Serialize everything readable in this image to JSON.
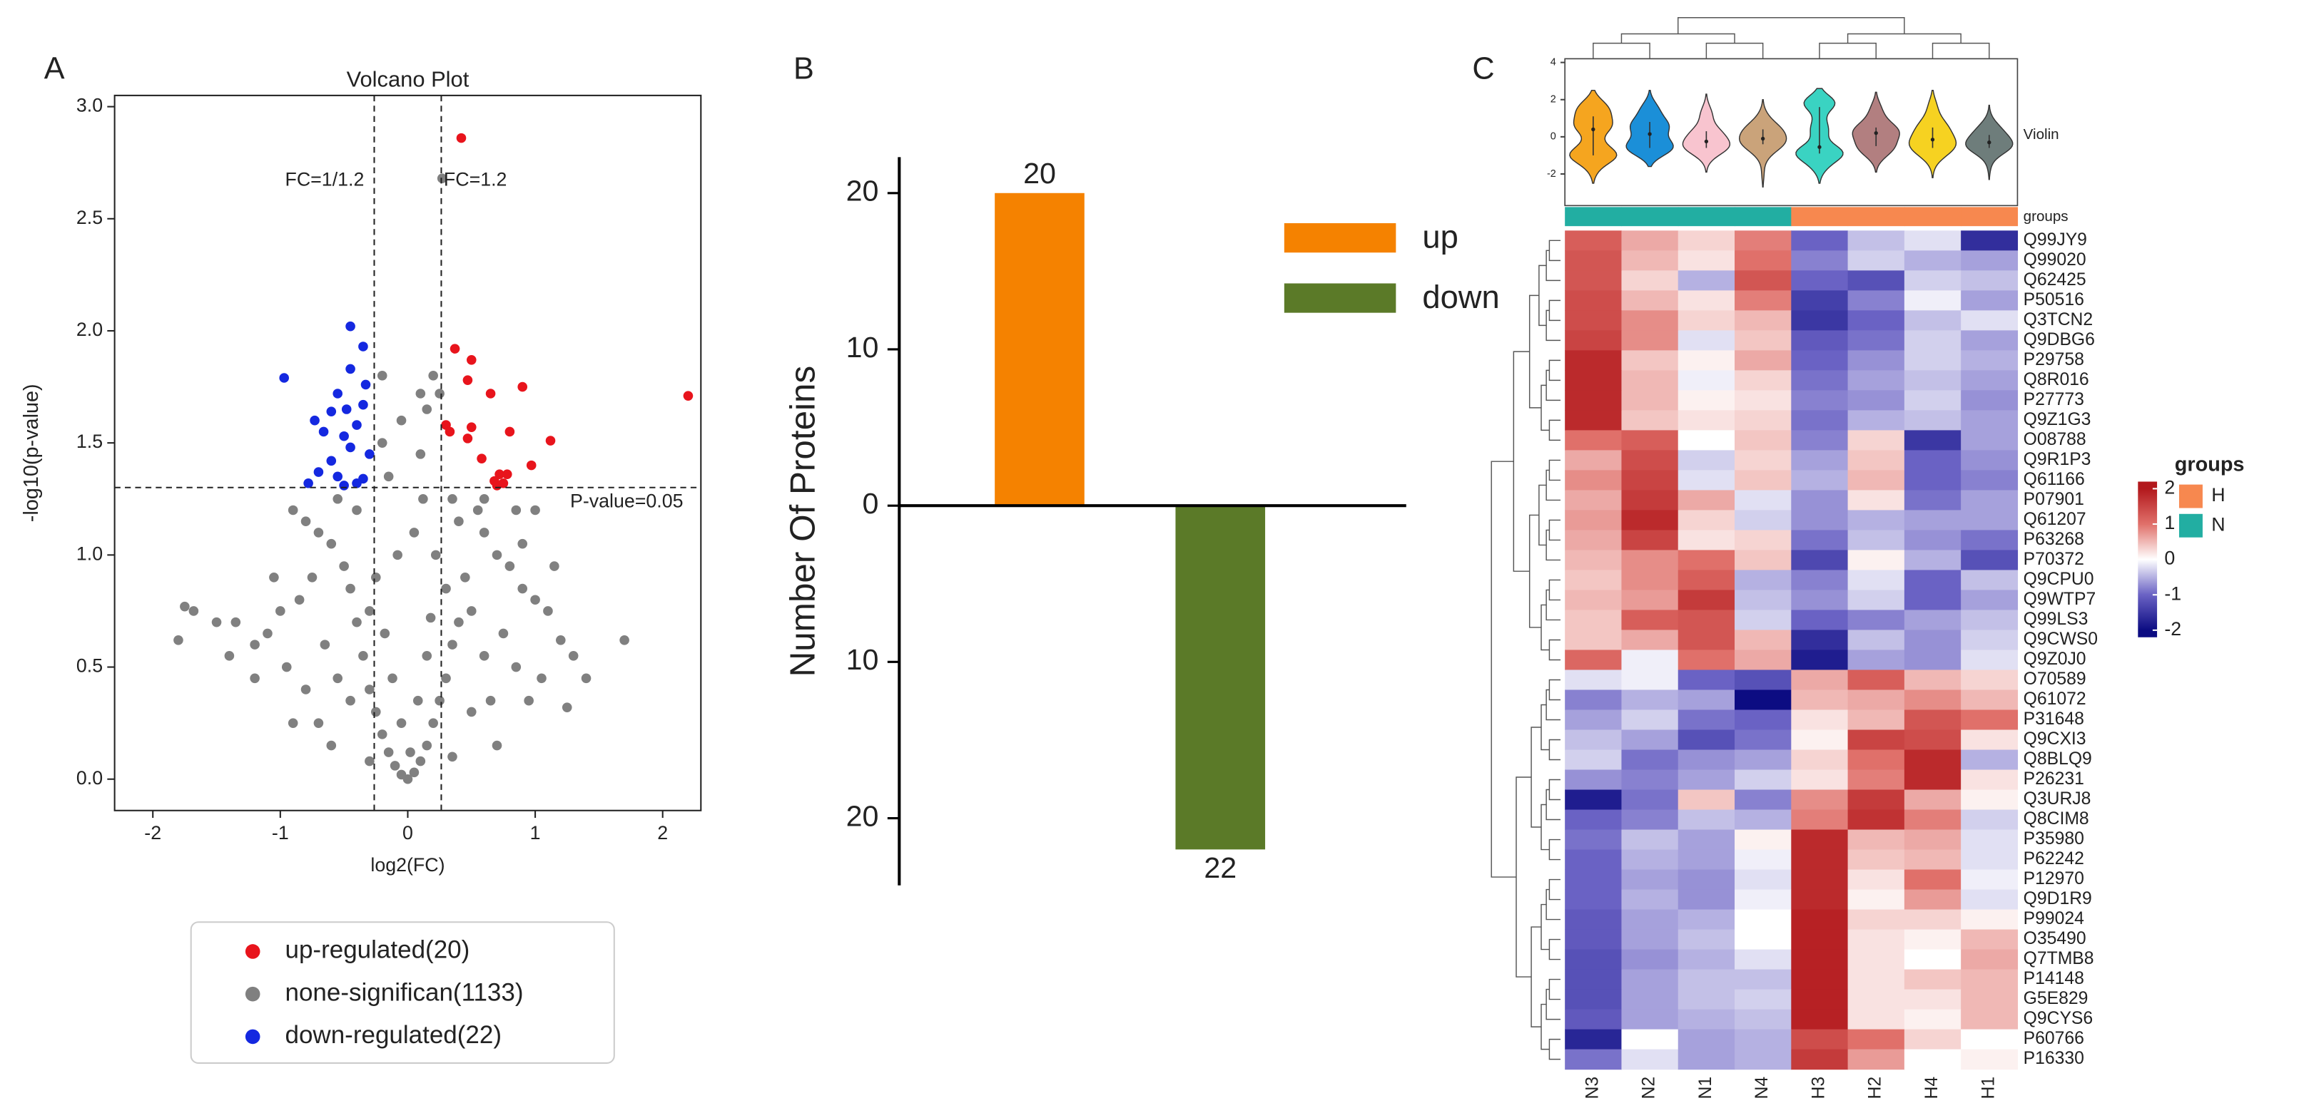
{
  "chart_data": [
    {
      "type": "scatter",
      "panel": "A",
      "title": "Volcano Plot",
      "xlabel": "log2(FC)",
      "ylabel": "-log10(p-value)",
      "xlim": [
        -2.3,
        2.3
      ],
      "ylim": [
        -0.14,
        3.05
      ],
      "xticks": [
        -2,
        -1,
        0,
        1,
        2
      ],
      "yticks": [
        {
          "value": 0,
          "label": "0.0"
        },
        0.5,
        {
          "value": 1,
          "label": "1.0"
        },
        1.5,
        {
          "value": 2,
          "label": "2.0"
        },
        2.5,
        {
          "value": 3,
          "label": "3.0"
        }
      ],
      "vlines": [
        -0.263,
        0.263
      ],
      "hline": 1.301,
      "annotations": [
        "FC=1/1.2",
        "FC=1.2",
        "P-value=0.05"
      ],
      "series": [
        {
          "name": "up-regulated(20)",
          "color": "#e8141c",
          "x": [
            0.42,
            0.37,
            0.5,
            0.47,
            0.65,
            0.9,
            2.2,
            0.3,
            0.33,
            0.5,
            0.47,
            0.8,
            1.12,
            0.58,
            0.97,
            0.72,
            0.68,
            0.75,
            0.7,
            0.78
          ],
          "values": [
            2.86,
            1.92,
            1.87,
            1.78,
            1.72,
            1.75,
            1.71,
            1.58,
            1.55,
            1.57,
            1.52,
            1.55,
            1.51,
            1.43,
            1.4,
            1.36,
            1.33,
            1.32,
            1.31,
            1.36
          ]
        },
        {
          "name": "none-significan(1133)",
          "color": "#808080",
          "x": [
            0.27,
            0.2,
            0.15,
            0.25,
            -0.05,
            0.1,
            -0.2,
            -0.15,
            0.35,
            0.4,
            0.55,
            0.6,
            0.7,
            0.8,
            0.9,
            1.0,
            1.1,
            1.2,
            1.3,
            1.7,
            0.45,
            0.5,
            0.35,
            0.3,
            0.25,
            0.2,
            0.15,
            0.1,
            0.05,
            0,
            -0.05,
            -0.1,
            -0.15,
            -0.2,
            -0.25,
            -0.3,
            -0.35,
            -0.4,
            -0.45,
            -0.5,
            -0.6,
            -0.7,
            -0.8,
            -0.9,
            -0.55,
            -0.4,
            -0.75,
            -0.85,
            -1.0,
            -1.1,
            -1.2,
            -1.4,
            -1.35,
            -1.75,
            -1.68,
            -1.8,
            -1.5,
            -0.65,
            -0.55,
            -0.45,
            -0.95,
            -0.8,
            -0.7,
            0.6,
            0.75,
            0.85,
            0.65,
            0.5,
            1.05,
            0.95,
            1.4,
            0.12,
            0.05,
            -0.08,
            0.22,
            -0.25,
            0.3,
            -0.3,
            0.4,
            0.15,
            -0.12,
            0.08,
            -0.05,
            0.02,
            0.18,
            -0.18,
            1.25,
            -0.9,
            0.7,
            -0.6,
            0.35,
            -0.3,
            0.9,
            1.0,
            0.6,
            -1.05,
            -1.2,
            1.15,
            0.85,
            -0.2,
            0.1
          ],
          "values": [
            2.68,
            1.8,
            1.65,
            1.72,
            1.6,
            1.45,
            1.5,
            1.35,
            1.25,
            1.15,
            1.2,
            1.1,
            1.0,
            0.95,
            0.85,
            0.8,
            0.75,
            0.62,
            0.55,
            0.62,
            0.9,
            0.75,
            0.6,
            0.45,
            0.35,
            0.25,
            0.15,
            0.08,
            0.03,
            0,
            0.02,
            0.06,
            0.12,
            0.2,
            0.3,
            0.4,
            0.55,
            0.7,
            0.85,
            0.95,
            1.05,
            1.1,
            1.15,
            1.2,
            1.25,
            1.2,
            0.9,
            0.8,
            0.75,
            0.65,
            0.6,
            0.55,
            0.7,
            0.77,
            0.75,
            0.62,
            0.7,
            0.6,
            0.45,
            0.35,
            0.5,
            0.4,
            0.25,
            0.55,
            0.65,
            0.5,
            0.35,
            0.3,
            0.45,
            0.35,
            0.45,
            1.25,
            1.1,
            1.0,
            1.0,
            0.9,
            0.85,
            0.75,
            0.7,
            0.55,
            0.45,
            0.35,
            0.25,
            0.12,
            0.72,
            0.65,
            0.32,
            0.25,
            0.15,
            0.15,
            0.1,
            0.08,
            1.05,
            1.2,
            1.25,
            0.9,
            0.45,
            0.95,
            1.2,
            1.8,
            1.72
          ]
        },
        {
          "name": "down-regulated(22)",
          "color": "#1428e0",
          "x": [
            -0.45,
            -0.35,
            -0.45,
            -0.97,
            -0.33,
            -0.55,
            -0.35,
            -0.6,
            -0.48,
            -0.73,
            -0.4,
            -0.66,
            -0.5,
            -0.45,
            -0.3,
            -0.6,
            -0.7,
            -0.55,
            -0.35,
            -0.4,
            -0.78,
            -0.5
          ],
          "values": [
            2.02,
            1.93,
            1.83,
            1.79,
            1.76,
            1.72,
            1.67,
            1.64,
            1.65,
            1.6,
            1.58,
            1.55,
            1.53,
            1.48,
            1.45,
            1.42,
            1.37,
            1.35,
            1.34,
            1.32,
            1.32,
            1.31
          ]
        }
      ]
    },
    {
      "type": "bar",
      "panel": "B",
      "ylabel": "Number Of Proteins",
      "ylim": [
        -24.3,
        22.3
      ],
      "yticks": [
        20,
        10,
        0,
        {
          "value": -10,
          "label": "10"
        },
        {
          "value": -20,
          "label": "20"
        }
      ],
      "series": [
        {
          "name": "up",
          "color": "#f58200",
          "values": [
            20
          ],
          "value_labels": [
            "20"
          ]
        },
        {
          "name": "down",
          "color": "#5b7a28",
          "values": [
            -22
          ],
          "value_labels": [
            "22"
          ]
        }
      ]
    },
    {
      "type": "heatmap",
      "panel": "C",
      "columns": [
        "N3",
        "N2",
        "N1",
        "N4",
        "H3",
        "H2",
        "H4",
        "H1"
      ],
      "rows": [
        "Q99JY9",
        "Q99020",
        "Q62425",
        "P50516",
        "Q3TCN2",
        "Q9DBG6",
        "P29758",
        "Q8R016",
        "P27773",
        "Q9Z1G3",
        "O08788",
        "Q9R1P3",
        "Q61166",
        "P07901",
        "Q61207",
        "P63268",
        "P70372",
        "Q9CPU0",
        "Q9WTP7",
        "Q99LS3",
        "Q9CWS0",
        "Q9Z0J0",
        "O70589",
        "Q61072",
        "P31648",
        "Q9CXI3",
        "Q8BLQ9",
        "P26231",
        "Q3URJ8",
        "Q8CIM8",
        "P35980",
        "P62242",
        "P12970",
        "Q9D1R9",
        "P99024",
        "O35490",
        "Q7TMB8",
        "P14148",
        "G5E829",
        "Q9CYS6",
        "P60766",
        "P16330"
      ],
      "values": [
        [
          1.2,
          0.6,
          0.3,
          0.9,
          -1.0,
          -0.4,
          -0.2,
          -1.6
        ],
        [
          1.3,
          0.5,
          0.2,
          1.0,
          -0.8,
          -0.3,
          -0.5,
          -0.6
        ],
        [
          1.3,
          0.3,
          -0.5,
          1.3,
          -1.0,
          -1.2,
          -0.3,
          -0.4
        ],
        [
          1.4,
          0.5,
          0.2,
          0.9,
          -1.4,
          -0.8,
          -0.1,
          -0.6
        ],
        [
          1.4,
          0.8,
          0.3,
          0.5,
          -1.5,
          -1.0,
          -0.4,
          -0.2
        ],
        [
          1.5,
          0.8,
          -0.2,
          0.4,
          -1.1,
          -0.9,
          -0.3,
          -0.6
        ],
        [
          1.8,
          0.4,
          0.1,
          0.6,
          -1.0,
          -0.7,
          -0.3,
          -0.5
        ],
        [
          1.8,
          0.5,
          -0.1,
          0.3,
          -0.9,
          -0.6,
          -0.4,
          -0.6
        ],
        [
          1.8,
          0.5,
          0.1,
          0.2,
          -0.8,
          -0.7,
          -0.3,
          -0.7
        ],
        [
          1.8,
          0.4,
          0.2,
          0.3,
          -0.9,
          -0.5,
          -0.4,
          -0.6
        ],
        [
          1.0,
          1.2,
          0.0,
          0.4,
          -0.8,
          0.3,
          -1.5,
          -0.6
        ],
        [
          0.6,
          1.4,
          -0.3,
          0.3,
          -0.6,
          0.4,
          -1.0,
          -0.7
        ],
        [
          0.8,
          1.5,
          -0.2,
          0.4,
          -0.5,
          0.5,
          -1.0,
          -0.8
        ],
        [
          0.6,
          1.6,
          0.6,
          -0.2,
          -0.7,
          0.2,
          -0.9,
          -0.6
        ],
        [
          0.7,
          1.8,
          0.3,
          -0.3,
          -0.7,
          -0.5,
          -0.6,
          -0.6
        ],
        [
          0.6,
          1.5,
          0.2,
          0.3,
          -0.9,
          -0.4,
          -0.7,
          -0.9
        ],
        [
          0.5,
          0.8,
          1.0,
          0.4,
          -1.3,
          0.1,
          -0.5,
          -1.2
        ],
        [
          0.4,
          0.8,
          1.2,
          -0.5,
          -0.8,
          -0.2,
          -1.0,
          -0.4
        ],
        [
          0.5,
          0.7,
          1.6,
          -0.4,
          -0.7,
          -0.3,
          -1.0,
          -0.6
        ],
        [
          0.4,
          1.2,
          1.3,
          -0.3,
          -1.0,
          -0.8,
          -0.6,
          -0.4
        ],
        [
          0.4,
          0.6,
          1.3,
          0.5,
          -1.6,
          -0.4,
          -0.7,
          -0.3
        ],
        [
          1.1,
          -0.1,
          1.0,
          0.6,
          -1.8,
          -0.6,
          -0.7,
          -0.2
        ],
        [
          -0.2,
          -0.1,
          -1.0,
          -1.2,
          0.6,
          1.2,
          0.5,
          0.3
        ],
        [
          -0.8,
          -0.5,
          -0.6,
          -2.0,
          0.5,
          0.6,
          0.8,
          0.5
        ],
        [
          -0.6,
          -0.3,
          -0.9,
          -1.0,
          0.2,
          0.5,
          1.3,
          1.0
        ],
        [
          -0.4,
          -0.6,
          -1.2,
          -0.9,
          0.1,
          1.5,
          1.4,
          0.2
        ],
        [
          -0.3,
          -0.9,
          -0.7,
          -0.6,
          0.3,
          1.0,
          1.8,
          -0.5
        ],
        [
          -0.7,
          -0.8,
          -0.6,
          -0.3,
          0.2,
          0.9,
          1.8,
          0.2
        ],
        [
          -1.8,
          -0.9,
          0.4,
          -0.8,
          0.8,
          1.6,
          0.6,
          0.1
        ],
        [
          -1.0,
          -0.8,
          -0.4,
          -0.5,
          0.9,
          1.7,
          0.9,
          -0.3
        ],
        [
          -0.9,
          -0.4,
          -0.6,
          0.1,
          1.8,
          0.5,
          0.6,
          -0.2
        ],
        [
          -1.0,
          -0.5,
          -0.6,
          -0.1,
          1.8,
          0.4,
          0.5,
          -0.2
        ],
        [
          -1.0,
          -0.6,
          -0.7,
          -0.2,
          1.8,
          0.2,
          1.0,
          -0.1
        ],
        [
          -1.0,
          -0.5,
          -0.7,
          -0.1,
          1.8,
          0.1,
          0.7,
          -0.2
        ],
        [
          -1.1,
          -0.6,
          -0.5,
          0.0,
          1.9,
          0.3,
          0.3,
          0.1
        ],
        [
          -1.1,
          -0.6,
          -0.4,
          0.0,
          1.9,
          0.2,
          0.1,
          0.5
        ],
        [
          -1.2,
          -0.7,
          -0.5,
          -0.2,
          1.9,
          0.2,
          0.0,
          0.6
        ],
        [
          -1.2,
          -0.6,
          -0.4,
          -0.4,
          1.9,
          0.2,
          0.4,
          0.5
        ],
        [
          -1.2,
          -0.6,
          -0.4,
          -0.3,
          1.9,
          0.2,
          0.2,
          0.5
        ],
        [
          -1.1,
          -0.6,
          -0.5,
          -0.4,
          1.9,
          0.2,
          0.1,
          0.5
        ],
        [
          -1.7,
          0.0,
          -0.6,
          -0.5,
          1.4,
          1.0,
          0.3,
          0.0
        ],
        [
          -0.9,
          -0.2,
          -0.6,
          -0.5,
          1.6,
          0.7,
          0.0,
          0.1
        ]
      ],
      "colorscale": {
        "colors": [
          "#0c0c82",
          "#6a62c4",
          "#ffffff",
          "#e0706a",
          "#b2181c"
        ],
        "domain": [
          -2,
          2
        ]
      },
      "clim": [
        -2.2,
        2.2
      ],
      "cticks": [
        2,
        1,
        0,
        -1,
        -2
      ],
      "group_title": "groups",
      "groups": [
        {
          "name": "H",
          "color": "#f7884f"
        },
        {
          "name": "N",
          "color": "#22aea2"
        }
      ],
      "column_groups": [
        "N",
        "N",
        "N",
        "N",
        "H",
        "H",
        "H",
        "H"
      ],
      "violin": {
        "label": "Violin",
        "ylim": [
          -3.7,
          4.2
        ],
        "yticks": [
          4,
          2,
          0,
          -2
        ],
        "colors": [
          "#f5a51f",
          "#1b8fd8",
          "#f8c4cf",
          "#caa37a",
          "#3ad3c2",
          "#b27f80",
          "#f6d221",
          "#6e7d7b"
        ]
      }
    }
  ]
}
